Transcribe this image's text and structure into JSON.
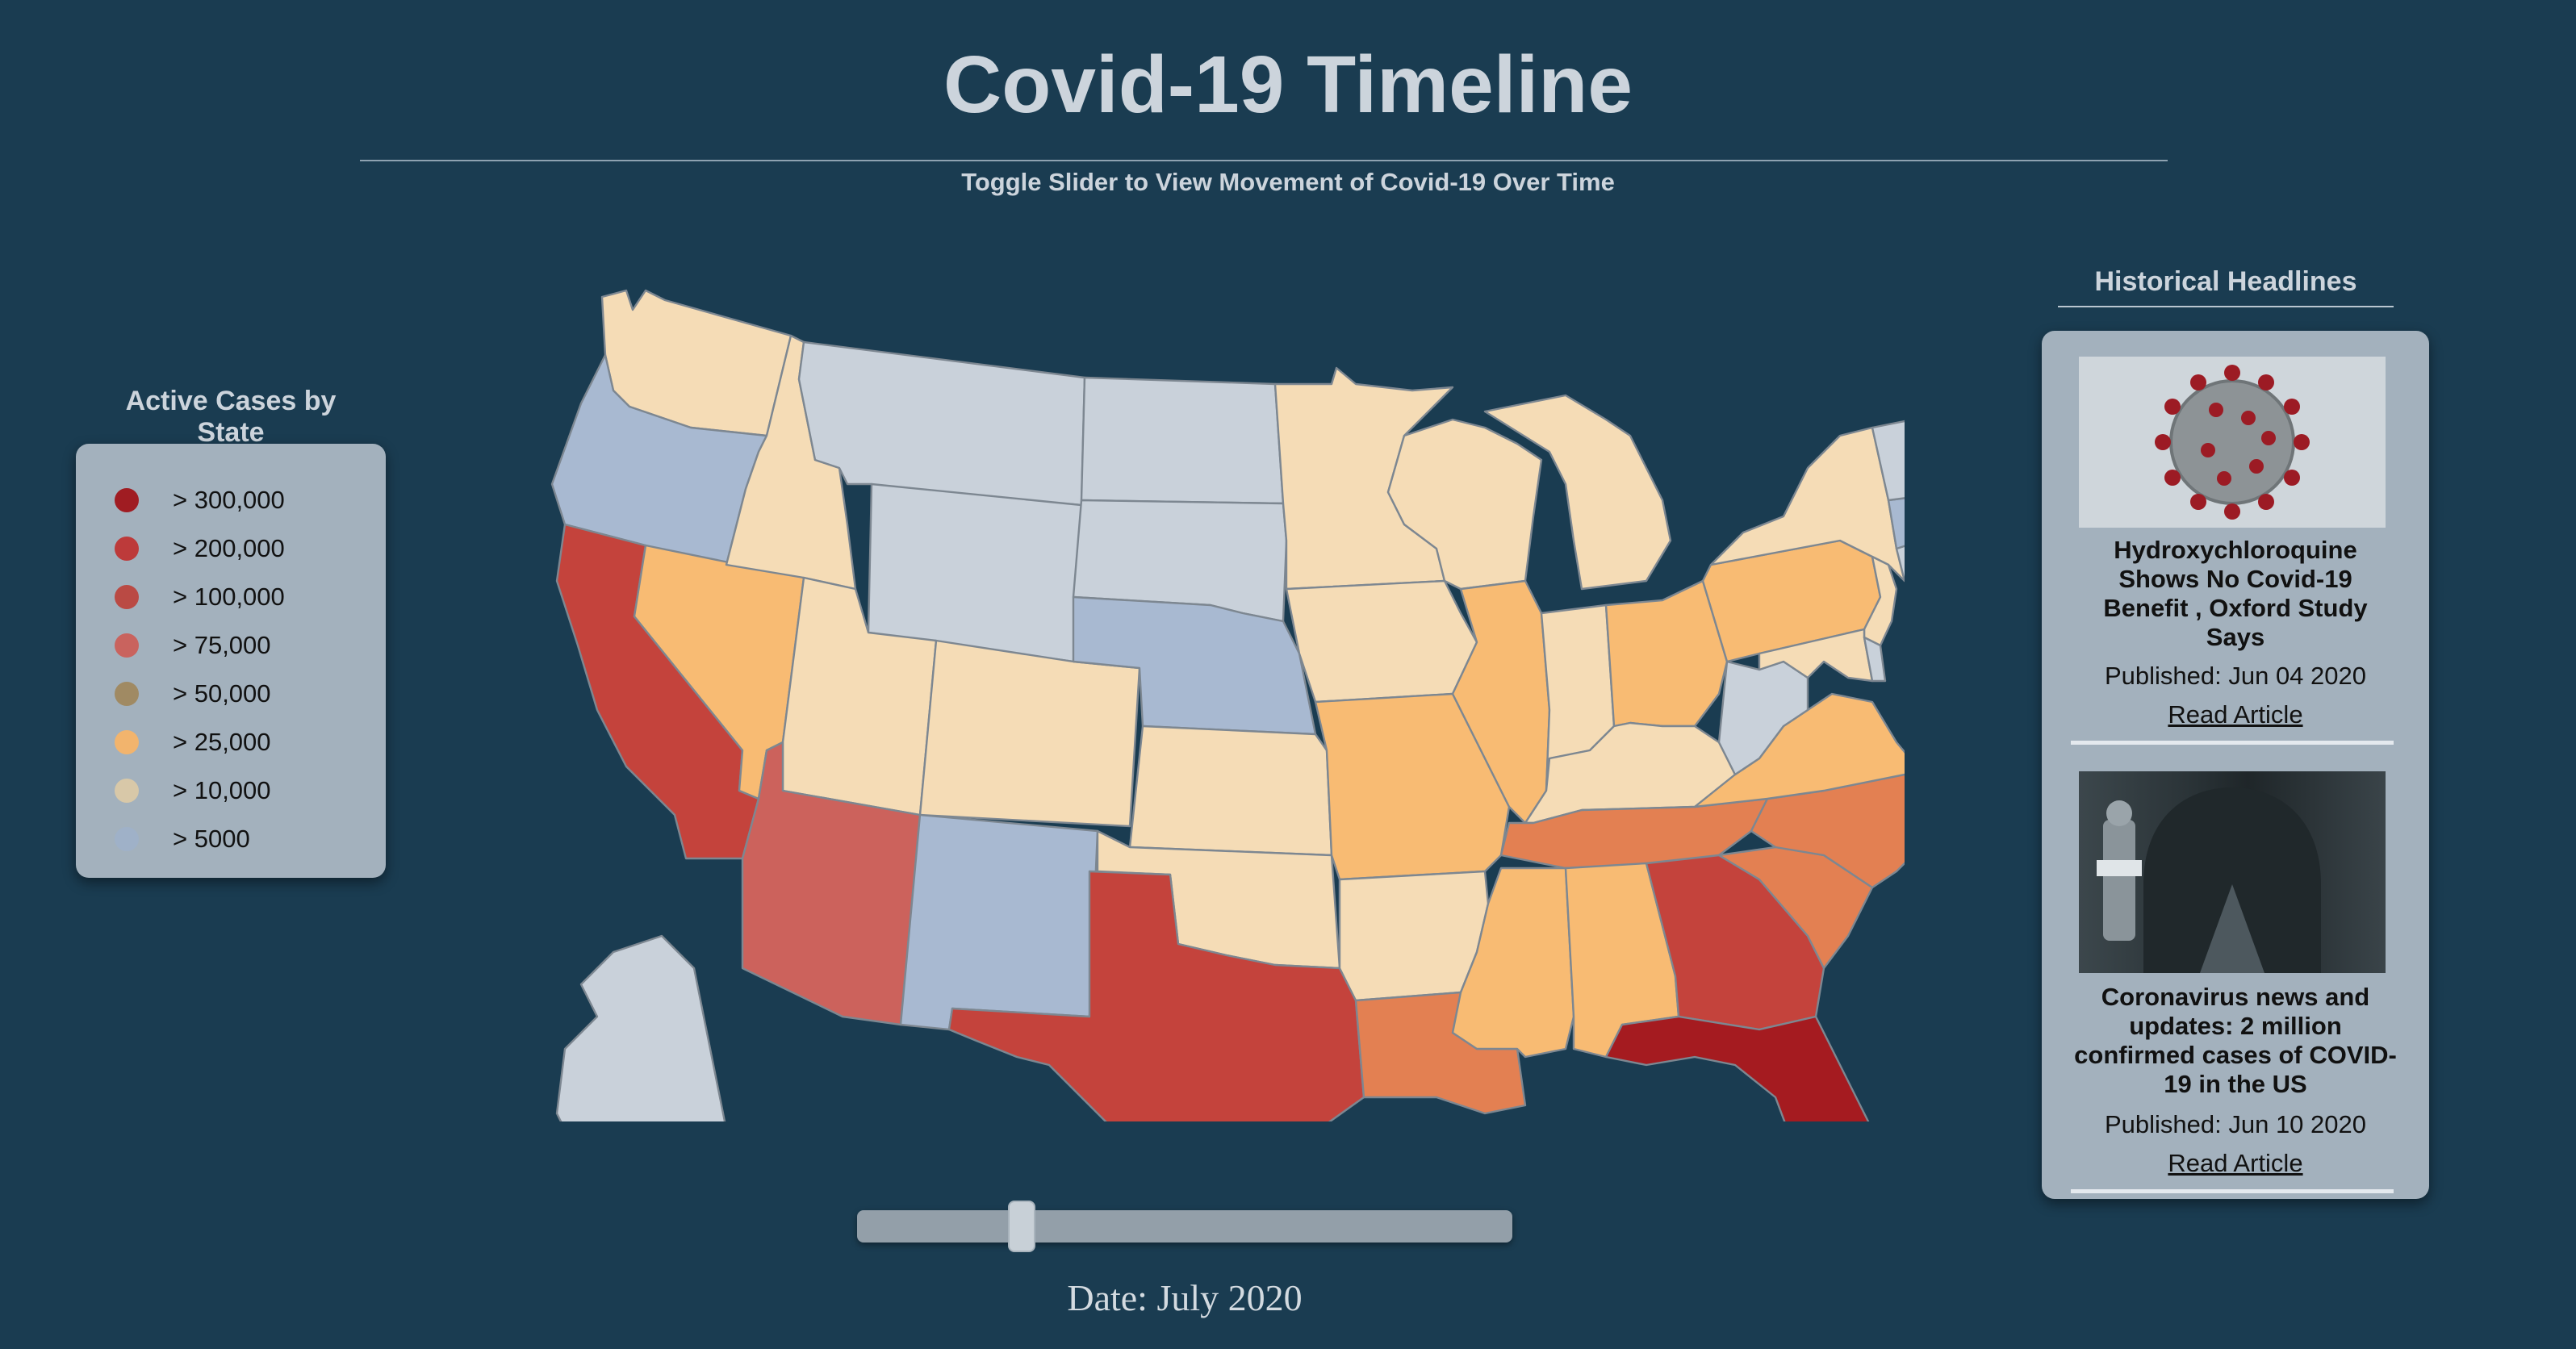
{
  "header": {
    "title": "Covid-19 Timeline",
    "subtitle": "Toggle Slider to View Movement of Covid-19 Over Time"
  },
  "legend": {
    "title": "Active Cases by State",
    "items": [
      {
        "label": "> 300,000",
        "color": "#a01c22"
      },
      {
        "label": "> 200,000",
        "color": "#bd3a3a"
      },
      {
        "label": "> 100,000",
        "color": "#ba4a44"
      },
      {
        "label": "> 75,000",
        "color": "#c9635e"
      },
      {
        "label": "> 50,000",
        "color": "#a08a63"
      },
      {
        "label": "> 25,000",
        "color": "#f2b46d"
      },
      {
        "label": "> 10,000",
        "color": "#d8c8a8"
      },
      {
        "label": "> 5000",
        "color": "#9fb1c8"
      }
    ]
  },
  "map": {
    "region": "United States",
    "default_color": "#c9d1da",
    "state_colors": {
      "WA": "#f5dcb6",
      "OR": "#a8b9d1",
      "CA": "#c4433c",
      "NV": "#f8bb73",
      "ID": "#f5dcb6",
      "MT": "#c9d1da",
      "WY": "#c9d1da",
      "UT": "#f5dcb6",
      "AZ": "#cc625c",
      "CO": "#f5dcb6",
      "NM": "#a8b9d1",
      "ND": "#c9d1da",
      "SD": "#c9d1da",
      "NE": "#a8b9d1",
      "KS": "#f5dcb6",
      "OK": "#f5dcb6",
      "TX": "#c4433c",
      "MN": "#f5dcb6",
      "IA": "#f5dcb6",
      "MO": "#f8bb73",
      "AR": "#f5dcb6",
      "LA": "#e38052",
      "WI": "#f5dcb6",
      "IL": "#f8bb73",
      "MI": "#f5dcb6",
      "IN": "#f5dcb6",
      "OH": "#f8bb73",
      "KY": "#f5dcb6",
      "TN": "#e38052",
      "MS": "#f8bb73",
      "AL": "#f8bb73",
      "GA": "#c4433c",
      "FL": "#a51b20",
      "SC": "#e38052",
      "NC": "#e38052",
      "VA": "#f8bb73",
      "WV": "#c9d1da",
      "PA": "#f8bb73",
      "NY": "#f5dcb6",
      "NJ": "#f5dcb6",
      "MD": "#f5dcb6",
      "DE": "#c9d1da",
      "CT": "#c9d1da",
      "RI": "#c9d1da",
      "MA": "#a8b9d1",
      "VT": "#c9d1da",
      "NH": "#c9d1da",
      "ME": "#c9d1da",
      "AK": "#c9d1da",
      "HI": "#c9d1da"
    }
  },
  "slider": {
    "date_label": "Date: July 2020",
    "progress": 0.24
  },
  "headlines": {
    "title": "Historical Headlines",
    "articles": [
      {
        "image": "coronavirus-virion",
        "title": "Hydroxychloroquine Shows No Covid-19 Benefit , Oxford Study Says",
        "date": "Published: Jun 04 2020",
        "link": "Read Article"
      },
      {
        "image": "empty-street-photo",
        "title": "Coronavirus news and updates: 2 million confirmed cases of COVID-19 in the US",
        "date": "Published: Jun 10 2020",
        "link": "Read Article"
      }
    ]
  }
}
